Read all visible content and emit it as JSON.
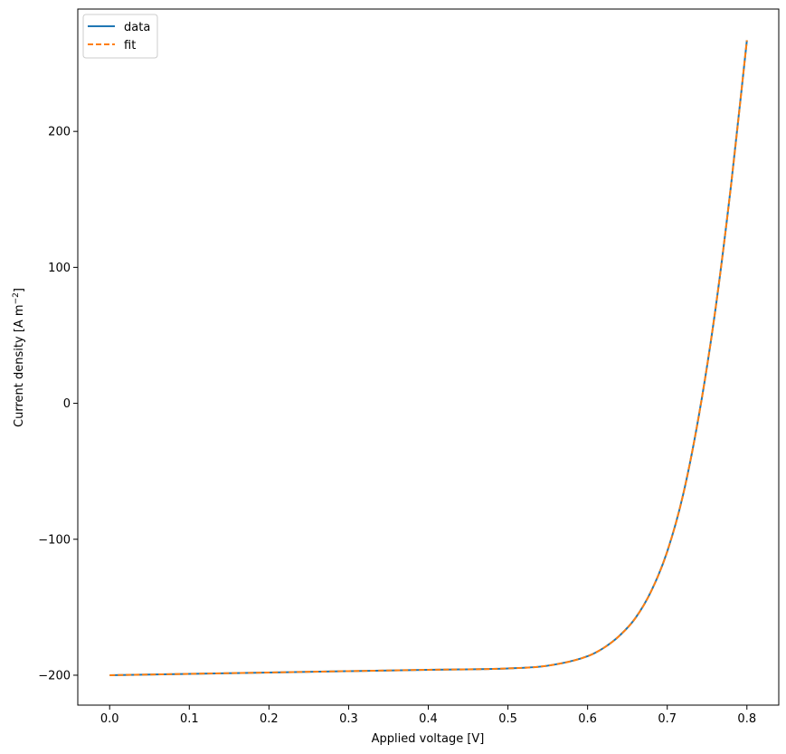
{
  "chart_data": {
    "type": "line",
    "title": "",
    "xlabel": "Applied voltage [V]",
    "ylabel_main": "Current density [A m",
    "ylabel_sup": "−2",
    "ylabel_end": "]",
    "xlim": [
      -0.04,
      0.84
    ],
    "ylim": [
      -222,
      290
    ],
    "x_ticks": [
      0.0,
      0.1,
      0.2,
      0.3,
      0.4,
      0.5,
      0.6,
      0.7,
      0.8
    ],
    "x_tick_labels": [
      "0.0",
      "0.1",
      "0.2",
      "0.3",
      "0.4",
      "0.5",
      "0.6",
      "0.7",
      "0.8"
    ],
    "y_ticks": [
      -200,
      -100,
      0,
      100,
      200
    ],
    "y_tick_labels": [
      "−200",
      "−100",
      "0",
      "100",
      "200"
    ],
    "grid": false,
    "legend_position": "top-left",
    "series": [
      {
        "name": "data",
        "color": "#1f77b4",
        "style": "solid",
        "x": [
          0.0,
          0.1,
          0.2,
          0.3,
          0.4,
          0.5,
          0.55,
          0.6,
          0.62,
          0.64,
          0.66,
          0.68,
          0.7,
          0.72,
          0.74,
          0.76,
          0.78,
          0.8
        ],
        "y": [
          -200,
          -199,
          -198,
          -197,
          -196,
          -195,
          -193,
          -186,
          -180,
          -171,
          -158,
          -138,
          -109,
          -67,
          -8,
          67,
          160,
          267
        ]
      },
      {
        "name": "fit",
        "color": "#ff7f0e",
        "style": "dashed",
        "x": [
          0.0,
          0.1,
          0.2,
          0.3,
          0.4,
          0.5,
          0.55,
          0.6,
          0.62,
          0.64,
          0.66,
          0.68,
          0.7,
          0.72,
          0.74,
          0.76,
          0.78,
          0.8
        ],
        "y": [
          -200,
          -199,
          -198,
          -197,
          -196,
          -195,
          -193,
          -186,
          -180,
          -171,
          -158,
          -138,
          -109,
          -67,
          -8,
          67,
          160,
          267
        ]
      }
    ]
  }
}
